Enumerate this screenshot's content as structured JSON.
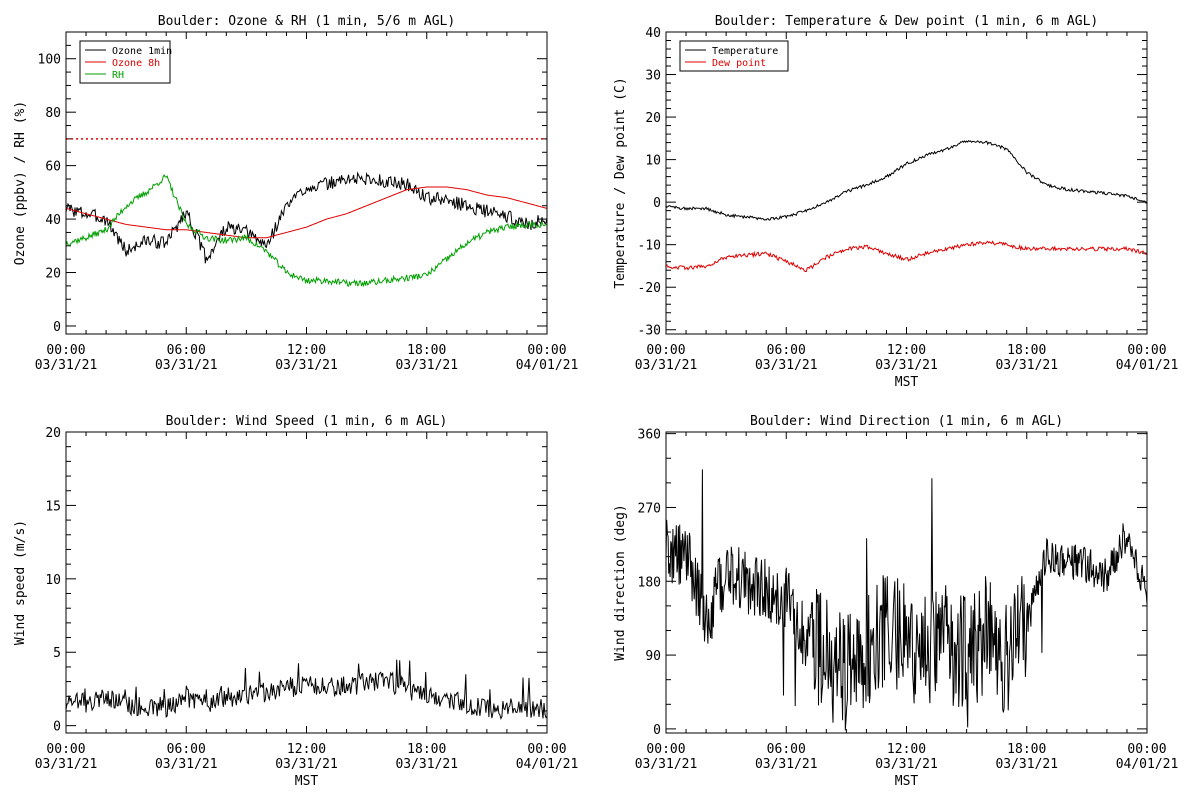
{
  "figure": {
    "background": "#ffffff"
  },
  "chart_data": [
    {
      "type": "line",
      "title": "Boulder: Ozone & RH (1 min, 5/6 m AGL)",
      "xlabel": "",
      "ylabel": "Ozone (ppbv) / RH (%)",
      "xlim": [
        "03/31/21 00:00",
        "04/01/21 00:00"
      ],
      "ylim": [
        -3,
        110
      ],
      "yticks": [
        "0",
        "20",
        "40",
        "60",
        "80",
        "100"
      ],
      "xticks": [
        {
          "t": "00:00",
          "d": "03/31/21"
        },
        {
          "t": "06:00",
          "d": "03/31/21"
        },
        {
          "t": "12:00",
          "d": "03/31/21"
        },
        {
          "t": "18:00",
          "d": "03/31/21"
        },
        {
          "t": "00:00",
          "d": "04/01/21"
        }
      ],
      "reference_line": {
        "y": 70,
        "color": "#e00000",
        "style": "dotted"
      },
      "legend_position": "top-left",
      "x": [
        "00:00",
        "01:00",
        "02:00",
        "03:00",
        "04:00",
        "05:00",
        "06:00",
        "07:00",
        "08:00",
        "09:00",
        "10:00",
        "11:00",
        "12:00",
        "13:00",
        "14:00",
        "15:00",
        "16:00",
        "17:00",
        "18:00",
        "19:00",
        "20:00",
        "21:00",
        "22:00",
        "23:00",
        "24:00"
      ],
      "series": [
        {
          "name": "Ozone 1min",
          "color": "#000000",
          "values": [
            44,
            42,
            40,
            28,
            32,
            31,
            43,
            25,
            37,
            35,
            30,
            45,
            52,
            53,
            55,
            55,
            54,
            53,
            48,
            47,
            45,
            43,
            41,
            38,
            40
          ]
        },
        {
          "name": "Ozone 8h",
          "color": "#e00000",
          "values": [
            44,
            42,
            40,
            38,
            37,
            36,
            36,
            35,
            34,
            33,
            33,
            35,
            37,
            40,
            42,
            45,
            48,
            51,
            52,
            52,
            51,
            49,
            48,
            46,
            44
          ]
        },
        {
          "name": "RH",
          "color": "#00a000",
          "values": [
            31,
            33,
            36,
            45,
            50,
            56,
            38,
            33,
            32,
            33,
            28,
            20,
            17,
            17,
            16,
            16,
            17,
            18,
            19,
            25,
            31,
            35,
            37,
            38,
            38
          ]
        }
      ]
    },
    {
      "type": "line",
      "title": "Boulder: Temperature & Dew point (1 min, 6 m AGL)",
      "xlabel": "MST",
      "ylabel": "Temperature / Dew point (C)",
      "xlim": [
        "03/31/21 00:00",
        "04/01/21 00:00"
      ],
      "ylim": [
        -31,
        40
      ],
      "yticks": [
        "-30",
        "-20",
        "-10",
        "0",
        "10",
        "20",
        "30",
        "40"
      ],
      "xticks": [
        {
          "t": "00:00",
          "d": "03/31/21"
        },
        {
          "t": "06:00",
          "d": "03/31/21"
        },
        {
          "t": "12:00",
          "d": "03/31/21"
        },
        {
          "t": "18:00",
          "d": "03/31/21"
        },
        {
          "t": "00:00",
          "d": "04/01/21"
        }
      ],
      "legend_position": "top-left",
      "x": [
        "00:00",
        "01:00",
        "02:00",
        "03:00",
        "04:00",
        "05:00",
        "06:00",
        "07:00",
        "08:00",
        "09:00",
        "10:00",
        "11:00",
        "12:00",
        "13:00",
        "14:00",
        "15:00",
        "16:00",
        "17:00",
        "18:00",
        "19:00",
        "20:00",
        "21:00",
        "22:00",
        "23:00",
        "24:00"
      ],
      "series": [
        {
          "name": "Temperature",
          "color": "#000000",
          "values": [
            -1,
            -1.5,
            -1.5,
            -3,
            -3.5,
            -4,
            -3.5,
            -2,
            0,
            2.5,
            4,
            6,
            9,
            11,
            12.5,
            14.5,
            14,
            12.5,
            7,
            4,
            3,
            2.5,
            2,
            1.5,
            0
          ]
        },
        {
          "name": "Dew point",
          "color": "#e00000",
          "values": [
            -15,
            -15.5,
            -15,
            -13,
            -12.5,
            -12,
            -14,
            -16,
            -13,
            -11,
            -10.5,
            -12,
            -13.5,
            -12,
            -11,
            -10,
            -9.5,
            -10,
            -11,
            -11,
            -11,
            -11,
            -11,
            -11,
            -12
          ]
        }
      ]
    },
    {
      "type": "line",
      "title": "Boulder: Wind Speed (1 min, 6 m AGL)",
      "xlabel": "MST",
      "ylabel": "Wind speed (m/s)",
      "xlim": [
        "03/31/21 00:00",
        "04/01/21 00:00"
      ],
      "ylim": [
        -0.5,
        20
      ],
      "yticks": [
        "0",
        "5",
        "10",
        "15",
        "20"
      ],
      "xticks": [
        {
          "t": "00:00",
          "d": "03/31/21"
        },
        {
          "t": "06:00",
          "d": "03/31/21"
        },
        {
          "t": "12:00",
          "d": "03/31/21"
        },
        {
          "t": "18:00",
          "d": "03/31/21"
        },
        {
          "t": "00:00",
          "d": "04/01/21"
        }
      ],
      "x": [
        "00:00",
        "01:00",
        "02:00",
        "03:00",
        "04:00",
        "05:00",
        "06:00",
        "07:00",
        "08:00",
        "09:00",
        "10:00",
        "11:00",
        "12:00",
        "13:00",
        "14:00",
        "15:00",
        "16:00",
        "17:00",
        "18:00",
        "19:00",
        "20:00",
        "21:00",
        "22:00",
        "23:00",
        "24:00"
      ],
      "series": [
        {
          "color": "#000000",
          "values": [
            1.5,
            1.3,
            1.6,
            1.2,
            1.0,
            1.0,
            1.5,
            1.3,
            1.6,
            1.9,
            2.0,
            2.2,
            2.6,
            2.3,
            2.4,
            2.6,
            2.8,
            2.2,
            1.8,
            1.5,
            1.2,
            0.9,
            0.9,
            1.0,
            0.8
          ]
        }
      ]
    },
    {
      "type": "line",
      "title": "Boulder: Wind Direction (1 min, 6 m AGL)",
      "xlabel": "MST",
      "ylabel": "Wind direction (deg)",
      "xlim": [
        "03/31/21 00:00",
        "04/01/21 00:00"
      ],
      "ylim": [
        -5,
        362
      ],
      "yticks": [
        "0",
        "90",
        "180",
        "270",
        "360"
      ],
      "xticks": [
        {
          "t": "00:00",
          "d": "03/31/21"
        },
        {
          "t": "06:00",
          "d": "03/31/21"
        },
        {
          "t": "12:00",
          "d": "03/31/21"
        },
        {
          "t": "18:00",
          "d": "03/31/21"
        },
        {
          "t": "00:00",
          "d": "04/01/21"
        }
      ],
      "x": [
        "00:00",
        "01:00",
        "02:00",
        "03:00",
        "04:00",
        "05:00",
        "06:00",
        "07:00",
        "08:00",
        "09:00",
        "10:00",
        "11:00",
        "12:00",
        "13:00",
        "14:00",
        "15:00",
        "16:00",
        "17:00",
        "18:00",
        "19:00",
        "20:00",
        "21:00",
        "22:00",
        "23:00",
        "24:00"
      ],
      "series": [
        {
          "color": "#000000",
          "values": [
            215,
            215,
            130,
            195,
            180,
            170,
            160,
            110,
            85,
            70,
            100,
            115,
            110,
            95,
            105,
            85,
            115,
            90,
            130,
            210,
            205,
            200,
            185,
            240,
            160
          ]
        }
      ]
    }
  ]
}
